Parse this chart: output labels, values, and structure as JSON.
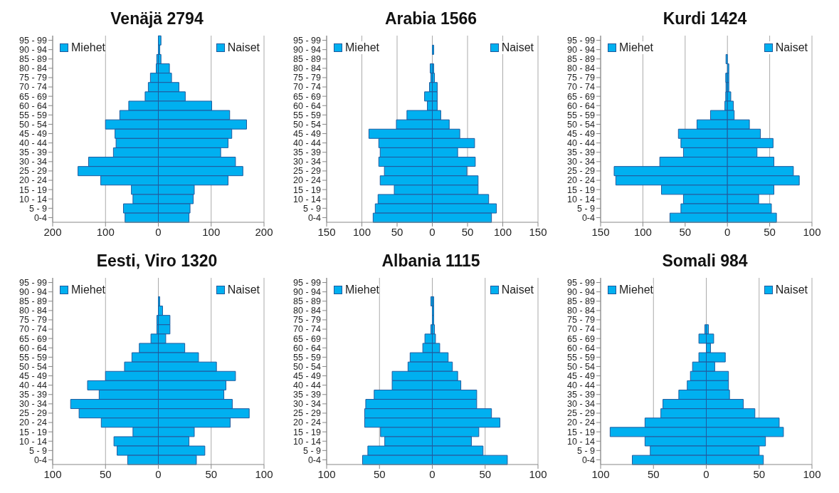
{
  "chart_data": [
    {
      "type": "bar",
      "title": "Venäjä 2794",
      "orientation": "horizontal",
      "stacked": true,
      "grid": "x",
      "legend": "top",
      "categories": [
        "95 - 99",
        "90 - 94",
        "85 - 89",
        "80 - 84",
        "75 - 79",
        "70 - 74",
        "65 - 69",
        "60 - 64",
        "55 - 59",
        "50 - 54",
        "45 - 49",
        "40 - 44",
        "35 - 39",
        "30 - 34",
        "25 - 29",
        "20 - 24",
        "15 - 19",
        "10 - 14",
        "5 - 9",
        "0-4"
      ],
      "xlim": [
        -200,
        200
      ],
      "xticks": [
        {
          "value": -200,
          "label": "200"
        },
        {
          "value": -100,
          "label": "100"
        },
        0,
        100,
        200
      ],
      "series": [
        {
          "name": "Miehet",
          "color": "#00b0f0",
          "values": [
            0,
            0,
            -3,
            -4,
            -15,
            -19,
            -25,
            -56,
            -73,
            -100,
            -82,
            -80,
            -85,
            -132,
            -152,
            -109,
            -51,
            -48,
            -66,
            -63
          ]
        },
        {
          "name": "Naiset",
          "color": "#00b0f0",
          "values": [
            5,
            1,
            5,
            21,
            25,
            39,
            51,
            101,
            135,
            167,
            139,
            132,
            118,
            146,
            160,
            132,
            68,
            66,
            60,
            58
          ]
        }
      ]
    },
    {
      "type": "bar",
      "title": "Arabia 1566",
      "orientation": "horizontal",
      "stacked": true,
      "grid": "x",
      "legend": "top",
      "categories": [
        "95 - 99",
        "90 - 94",
        "85 - 89",
        "80 - 84",
        "75 - 79",
        "70 - 74",
        "65 - 69",
        "60 - 64",
        "55 - 59",
        "50 - 54",
        "45 - 49",
        "40 - 44",
        "35 - 39",
        "30 - 34",
        "25 - 29",
        "20 - 24",
        "15 - 19",
        "10 - 14",
        "5 - 9",
        "0-4"
      ],
      "xlim": [
        -150,
        150
      ],
      "xticks": [
        {
          "value": -150,
          "label": "150"
        },
        {
          "value": -100,
          "label": "100"
        },
        {
          "value": -50,
          "label": "50"
        },
        0,
        50,
        100,
        150
      ],
      "series": [
        {
          "name": "Miehet",
          "color": "#00b0f0",
          "values": [
            0,
            0,
            0,
            -3,
            -2,
            -4,
            -11,
            -7,
            -36,
            -51,
            -90,
            -76,
            -74,
            -76,
            -68,
            -74,
            -54,
            -77,
            -81,
            -84
          ]
        },
        {
          "name": "Naiset",
          "color": "#00b0f0",
          "values": [
            0,
            1,
            0,
            2,
            3,
            7,
            7,
            7,
            12,
            24,
            39,
            60,
            36,
            61,
            49,
            65,
            65,
            80,
            91,
            84
          ]
        }
      ]
    },
    {
      "type": "bar",
      "title": "Kurdi 1424",
      "orientation": "horizontal",
      "stacked": true,
      "grid": "x",
      "legend": "top",
      "categories": [
        "95 - 99",
        "90 - 94",
        "85 - 89",
        "80 - 84",
        "75 - 79",
        "70 - 74",
        "65 - 69",
        "60 - 64",
        "55 - 59",
        "50 - 54",
        "45 - 49",
        "40 - 44",
        "35 - 39",
        "30 - 34",
        "25 - 29",
        "20 - 24",
        "15 - 19",
        "10 - 14",
        "5 - 9",
        "0-4"
      ],
      "xlim": [
        -150,
        100
      ],
      "xticks": [
        {
          "value": -150,
          "label": "150"
        },
        {
          "value": -100,
          "label": "100"
        },
        {
          "value": -50,
          "label": "50"
        },
        0,
        50,
        100
      ],
      "series": [
        {
          "name": "Miehet",
          "color": "#00b0f0",
          "values": [
            0,
            0,
            -1,
            0,
            -2,
            -1,
            -2,
            -3,
            -20,
            -36,
            -58,
            -55,
            -52,
            -80,
            -134,
            -132,
            -78,
            -52,
            -55,
            -68
          ]
        },
        {
          "name": "Naiset",
          "color": "#00b0f0",
          "values": [
            0,
            0,
            0,
            1,
            1,
            1,
            4,
            7,
            8,
            26,
            39,
            54,
            35,
            55,
            78,
            85,
            55,
            37,
            52,
            58
          ]
        }
      ]
    },
    {
      "type": "bar",
      "title": "Eesti, Viro 1320",
      "orientation": "horizontal",
      "stacked": true,
      "grid": "x",
      "legend": "top",
      "categories": [
        "95 - 99",
        "90 - 94",
        "85 - 89",
        "80 - 84",
        "75 - 79",
        "70 - 74",
        "65 - 69",
        "60 - 64",
        "55 - 59",
        "50 - 54",
        "45 - 49",
        "40 - 44",
        "35 - 39",
        "30 - 34",
        "25 - 29",
        "20 - 24",
        "15 - 19",
        "10 - 14",
        "5 - 9",
        "0-4"
      ],
      "xlim": [
        -100,
        100
      ],
      "xticks": [
        {
          "value": -100,
          "label": "100"
        },
        {
          "value": -50,
          "label": "50"
        },
        0,
        50,
        100
      ],
      "series": [
        {
          "name": "Miehet",
          "color": "#00b0f0",
          "values": [
            0,
            0,
            0,
            0,
            -1,
            -1,
            -7,
            -18,
            -25,
            -32,
            -50,
            -67,
            -56,
            -83,
            -75,
            -54,
            -24,
            -42,
            -39,
            -29
          ]
        },
        {
          "name": "Naiset",
          "color": "#00b0f0",
          "values": [
            0,
            0,
            1,
            4,
            11,
            11,
            7,
            25,
            38,
            55,
            73,
            64,
            62,
            70,
            86,
            68,
            34,
            29,
            44,
            36
          ]
        }
      ]
    },
    {
      "type": "bar",
      "title": "Albania 1115",
      "orientation": "horizontal",
      "stacked": true,
      "grid": "x",
      "legend": "top",
      "categories": [
        "95 - 99",
        "90 - 94",
        "85 - 89",
        "80 - 84",
        "75 - 79",
        "70 - 74",
        "65 - 69",
        "60 - 64",
        "55 - 59",
        "50 - 54",
        "45 - 49",
        "40 - 44",
        "35 - 39",
        "30 - 34",
        "25 - 29",
        "20 - 24",
        "15 - 19",
        "10 - 14",
        "5 - 9",
        "0-4"
      ],
      "xlim": [
        -100,
        100
      ],
      "xticks": [
        {
          "value": -100,
          "label": "100"
        },
        {
          "value": -50,
          "label": "50"
        },
        0,
        50,
        100
      ],
      "series": [
        {
          "name": "Miehet",
          "color": "#00b0f0",
          "values": [
            0,
            0,
            -1,
            0,
            0,
            -1,
            -7,
            -9,
            -21,
            -23,
            -38,
            -38,
            -55,
            -63,
            -64,
            -64,
            -49,
            -45,
            -61,
            -66
          ]
        },
        {
          "name": "Naiset",
          "color": "#00b0f0",
          "values": [
            0,
            0,
            1,
            1,
            1,
            2,
            3,
            7,
            15,
            19,
            24,
            27,
            42,
            42,
            56,
            64,
            44,
            37,
            48,
            71
          ]
        }
      ]
    },
    {
      "type": "bar",
      "title": "Somali 984",
      "orientation": "horizontal",
      "stacked": true,
      "grid": "x",
      "legend": "top",
      "categories": [
        "95 - 99",
        "90 - 94",
        "85 - 89",
        "80 - 84",
        "75 - 79",
        "70 - 74",
        "65 - 69",
        "60 - 64",
        "55 - 59",
        "50 - 54",
        "45 - 49",
        "40 - 44",
        "35 - 39",
        "30 - 34",
        "25 - 29",
        "20 - 24",
        "15 - 19",
        "10 - 14",
        "5 - 9",
        "0-4"
      ],
      "xlim": [
        -100,
        100
      ],
      "xticks": [
        {
          "value": -100,
          "label": "100"
        },
        {
          "value": -50,
          "label": "50"
        },
        0,
        50,
        100
      ],
      "series": [
        {
          "name": "Miehet",
          "color": "#00b0f0",
          "values": [
            0,
            0,
            0,
            0,
            0,
            -1,
            -7,
            0,
            -7,
            -13,
            -15,
            -18,
            -26,
            -41,
            -43,
            -58,
            -91,
            -58,
            -53,
            -70
          ]
        },
        {
          "name": "Naiset",
          "color": "#00b0f0",
          "values": [
            0,
            0,
            0,
            0,
            0,
            2,
            7,
            4,
            18,
            8,
            21,
            21,
            22,
            35,
            46,
            69,
            73,
            56,
            50,
            54
          ]
        }
      ]
    }
  ]
}
